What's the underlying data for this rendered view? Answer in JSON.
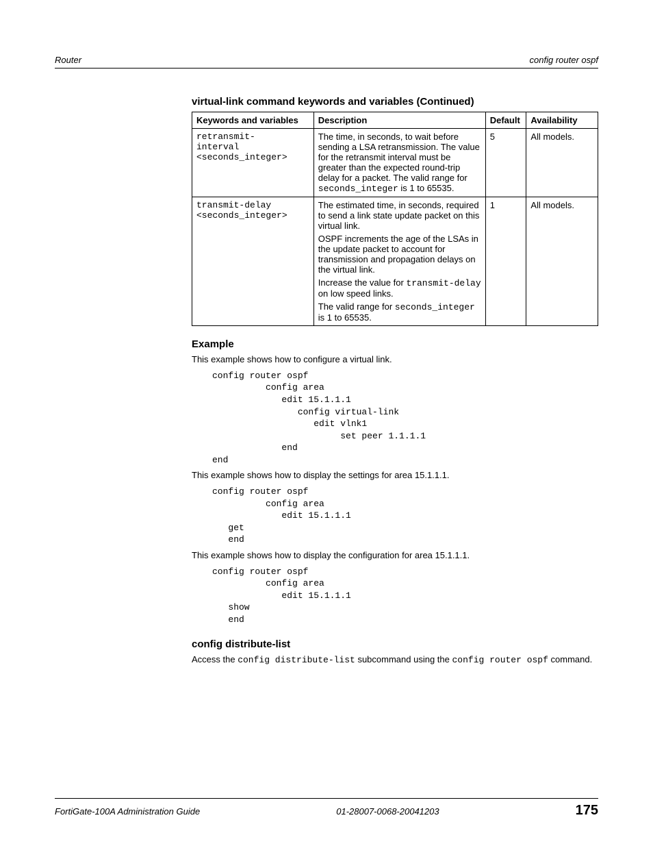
{
  "header": {
    "left": "Router",
    "right": "config router ospf"
  },
  "table": {
    "caption": "virtual-link command keywords and variables (Continued)",
    "columns": [
      "Keywords and variables",
      "Description",
      "Default",
      "Availability"
    ],
    "rows": [
      {
        "kw_lines": [
          "retransmit-",
          "interval",
          "<seconds_integer>"
        ],
        "desc_parts": [
          {
            "type": "text",
            "value": "The time, in seconds, to wait before sending a LSA retransmission. The value for the retransmit interval must be greater than the expected round-trip delay for a packet. The valid range for "
          },
          {
            "type": "mono",
            "value": "seconds_integer"
          },
          {
            "type": "text",
            "value": " is 1 to 65535."
          }
        ],
        "default": "5",
        "avail": "All models."
      },
      {
        "kw_lines": [
          "transmit-delay",
          "<seconds_integer>"
        ],
        "desc_paras": [
          [
            {
              "type": "text",
              "value": "The estimated time, in seconds, required to send a link state update packet on this virtual link."
            }
          ],
          [
            {
              "type": "text",
              "value": "OSPF increments the age of the LSAs in the update packet to account for transmission and propagation delays on the virtual link."
            }
          ],
          [
            {
              "type": "text",
              "value": "Increase the value for "
            },
            {
              "type": "mono",
              "value": "transmit-delay"
            },
            {
              "type": "text",
              "value": " on low speed links."
            }
          ],
          [
            {
              "type": "text",
              "value": "The valid range for "
            },
            {
              "type": "mono",
              "value": "seconds_integer"
            },
            {
              "type": "text",
              "value": " is 1 to 65535."
            }
          ]
        ],
        "default": "1",
        "avail": "All models."
      }
    ]
  },
  "example": {
    "heading": "Example",
    "intro1": "This example shows how to configure a virtual link.",
    "code1": "config router ospf\n          config area\n             edit 15.1.1.1\n                config virtual-link\n                   edit vlnk1\n                        set peer 1.1.1.1\n             end\nend",
    "intro2": "This example shows how to display the settings for area 15.1.1.1.",
    "code2": "config router ospf\n          config area\n             edit 15.1.1.1\n   get\n   end",
    "intro3": "This example shows how to display the configuration for area 15.1.1.1.",
    "code3": "config router ospf\n          config area\n             edit 15.1.1.1\n   show\n   end"
  },
  "dist": {
    "heading": "config distribute-list",
    "parts": [
      {
        "type": "text",
        "value": "Access the "
      },
      {
        "type": "mono",
        "value": "config distribute-list"
      },
      {
        "type": "text",
        "value": " subcommand using the "
      },
      {
        "type": "mono",
        "value": "config router ospf"
      },
      {
        "type": "text",
        "value": " command."
      }
    ]
  },
  "footer": {
    "left": "FortiGate-100A Administration Guide",
    "center": "01-28007-0068-20041203",
    "page": "175"
  }
}
